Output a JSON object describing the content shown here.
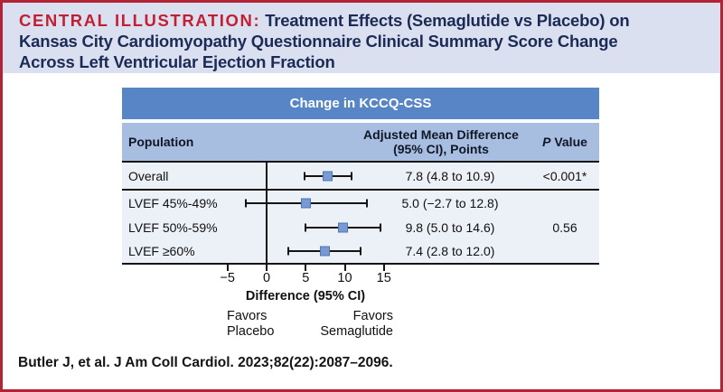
{
  "header": {
    "label": "CENTRAL ILLUSTRATION:",
    "line1_rest": "Treatment Effects (Semaglutide vs Placebo) on",
    "line2": "Kansas City Cardiomyopathy Questionnaire Clinical Summary Score Change",
    "line3": "Across Left Ventricular Ejection Fraction"
  },
  "table": {
    "title": "Change in KCCQ-CSS",
    "columns": {
      "population": "Population",
      "effect_line1": "Adjusted Mean Difference",
      "effect_line2": "(95% CI), Points",
      "p_italic": "P",
      "p_rest": " Value"
    }
  },
  "chart_data": {
    "type": "forest",
    "title": "Change in KCCQ-CSS",
    "xlabel": "Difference (95% CI)",
    "reference_line": 0,
    "xlim": [
      -7,
      17.5
    ],
    "x_ticks": [
      {
        "value": -5,
        "label": "−5"
      },
      {
        "value": 0,
        "label": "0"
      },
      {
        "value": 5,
        "label": "5"
      },
      {
        "value": 10,
        "label": "10"
      },
      {
        "value": 15,
        "label": "15"
      }
    ],
    "rows": [
      {
        "label": "Overall",
        "mean": 7.8,
        "ci_low": 4.8,
        "ci_high": 10.9,
        "display": "7.8 (4.8 to 10.9)",
        "p_value": "<0.001*"
      },
      {
        "label": "LVEF 45%-49%",
        "mean": 5.0,
        "ci_low": -2.7,
        "ci_high": 12.8,
        "display": "5.0 (−2.7 to 12.8)",
        "p_value": ""
      },
      {
        "label": "LVEF 50%-59%",
        "mean": 9.8,
        "ci_low": 5.0,
        "ci_high": 14.6,
        "display": "9.8 (5.0 to 14.6)",
        "p_value": "0.56"
      },
      {
        "label": "LVEF ≥60%",
        "mean": 7.4,
        "ci_low": 2.8,
        "ci_high": 12.0,
        "display": "7.4 (2.8 to 12.0)",
        "p_value": ""
      }
    ],
    "favors": {
      "left_line1": "Favors",
      "left_line2": "Placebo",
      "right_line1": "Favors",
      "right_line2": "Semaglutide"
    },
    "legend_position": "none"
  },
  "footer": {
    "citation": "Butler J, et al. J Am Coll Cardiol. 2023;82(22):2087–2096."
  },
  "colors": {
    "border_red": "#B22433",
    "label_red": "#C31F33",
    "navy": "#1B2B55",
    "band_bg": "#DBE0F1",
    "header_blue": "#5885C5",
    "column_header_blue": "#A8BEE0",
    "row_bg": "#ECF0F7",
    "marker_fill": "#7899D3",
    "marker_border": "#4C77B5",
    "line_black": "#141414"
  }
}
